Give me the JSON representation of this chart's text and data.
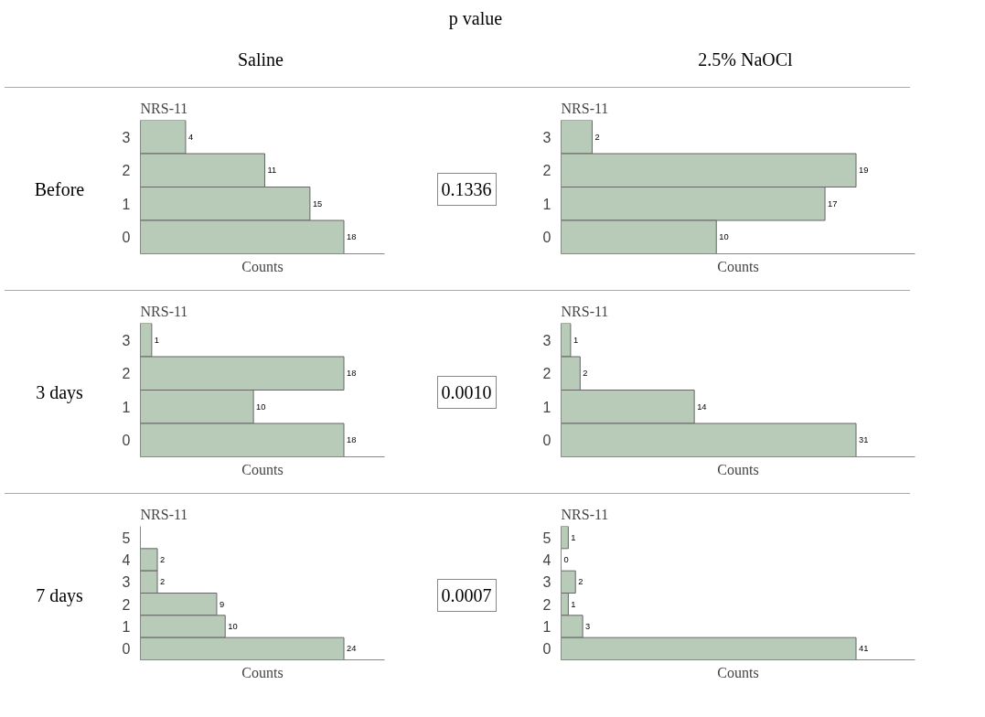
{
  "chart_data": [
    {
      "type": "bar",
      "orientation": "horizontal",
      "ylabel": "NRS-11",
      "xlabel": "Counts",
      "categories": [
        "3",
        "2",
        "1",
        "0"
      ],
      "values": [
        4,
        11,
        15,
        18
      ],
      "color": "#b8cbb9",
      "data_labels": true,
      "tick_labels": "y"
    },
    {
      "type": "bar",
      "orientation": "horizontal",
      "ylabel": "NRS-11",
      "xlabel": "Counts",
      "categories": [
        "3",
        "2",
        "1",
        "0"
      ],
      "values": [
        2,
        19,
        17,
        10
      ],
      "color": "#b8cbb9",
      "data_labels": true,
      "tick_labels": "y"
    },
    {
      "type": "bar",
      "orientation": "horizontal",
      "ylabel": "NRS-11",
      "xlabel": "Counts",
      "categories": [
        "3",
        "2",
        "1",
        "0"
      ],
      "values": [
        1,
        18,
        10,
        18
      ],
      "color": "#b8cbb9",
      "data_labels": true,
      "tick_labels": "y"
    },
    {
      "type": "bar",
      "orientation": "horizontal",
      "ylabel": "NRS-11",
      "xlabel": "Counts",
      "categories": [
        "3",
        "2",
        "1",
        "0"
      ],
      "values": [
        1,
        2,
        14,
        31
      ],
      "color": "#b8cbb9",
      "data_labels": true,
      "tick_labels": "y"
    },
    {
      "type": "bar",
      "orientation": "horizontal",
      "ylabel": "NRS-11",
      "xlabel": "Counts",
      "categories": [
        "5",
        "4",
        "3",
        "2",
        "1",
        "0"
      ],
      "values": [
        null,
        2,
        2,
        9,
        10,
        24
      ],
      "color": "#b8cbb9",
      "data_labels": true,
      "tick_labels": "y"
    },
    {
      "type": "bar",
      "orientation": "horizontal",
      "ylabel": "NRS-11",
      "xlabel": "Counts",
      "categories": [
        "5",
        "4",
        "3",
        "2",
        "1",
        "0"
      ],
      "values": [
        1,
        0,
        2,
        1,
        3,
        41
      ],
      "color": "#b8cbb9",
      "data_labels": true,
      "tick_labels": "y"
    },
    {
      "type": "other",
      "annotations": [
        "p value",
        "Saline",
        "2.5% NaOCl",
        "Before",
        "3 days",
        "7 days",
        "0.1336",
        "0.0010",
        "0.0007"
      ]
    }
  ]
}
